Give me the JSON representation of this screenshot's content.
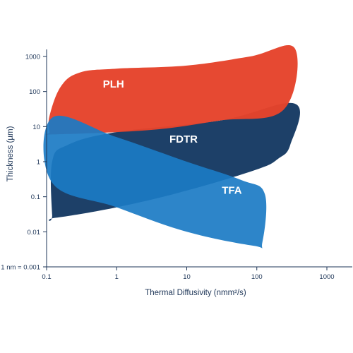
{
  "chart_data": {
    "type": "area",
    "xlabel": "Thermal Diffusivity (nmm²/s)",
    "ylabel": "Thickness (µm)",
    "x_scale": "log",
    "y_scale": "log",
    "xlim": [
      0.1,
      1000
    ],
    "ylim": [
      0.001,
      1000
    ],
    "x_ticks": [
      {
        "value": 0.1,
        "label": "0.1"
      },
      {
        "value": 1,
        "label": "1"
      },
      {
        "value": 10,
        "label": "10"
      },
      {
        "value": 100,
        "label": "100"
      },
      {
        "value": 1000,
        "label": "1000"
      }
    ],
    "y_ticks": [
      {
        "value": 0.001,
        "label": "1 nm = 0.001"
      },
      {
        "value": 0.01,
        "label": "0.01"
      },
      {
        "value": 0.1,
        "label": "0.1"
      },
      {
        "value": 1,
        "label": "1"
      },
      {
        "value": 10,
        "label": "10"
      },
      {
        "value": 100,
        "label": "100"
      },
      {
        "value": 1000,
        "label": "1000"
      }
    ],
    "grid": false,
    "series": [
      {
        "name": "FDTR",
        "color": "#163a63",
        "polygon": [
          [
            0.12,
            0.03
          ],
          [
            0.13,
            0.025
          ],
          [
            1,
            0.05
          ],
          [
            10,
            0.15
          ],
          [
            100,
            0.6
          ],
          [
            200,
            1.2
          ],
          [
            300,
            3
          ],
          [
            350,
            45
          ],
          [
            30,
            15
          ],
          [
            1,
            7
          ],
          [
            0.2,
            3
          ],
          [
            0.12,
            1
          ]
        ],
        "label_at": [
          9,
          3.5
        ]
      },
      {
        "name": "PLH",
        "color": "#e5432b",
        "polygon": [
          [
            0.11,
            7
          ],
          [
            0.12,
            6
          ],
          [
            3,
            8
          ],
          [
            30,
            15
          ],
          [
            240,
            30
          ],
          [
            350,
            1700
          ],
          [
            80,
            1000
          ],
          [
            10,
            550
          ],
          [
            1,
            450
          ],
          [
            0.3,
            350
          ],
          [
            0.16,
            140
          ],
          [
            0.11,
            20
          ]
        ],
        "label_at": [
          0.9,
          130
        ]
      },
      {
        "name": "TFA",
        "color": "#1b7bc4",
        "polygon": [
          [
            0.12,
            18
          ],
          [
            1,
            5
          ],
          [
            10,
            1
          ],
          [
            60,
            0.3
          ],
          [
            130,
            0.12
          ],
          [
            120,
            0.005
          ],
          [
            90,
            0.004
          ],
          [
            10,
            0.01
          ],
          [
            1,
            0.05
          ],
          [
            0.12,
            0.25
          ]
        ],
        "label_at": [
          44,
          0.12
        ]
      }
    ]
  }
}
